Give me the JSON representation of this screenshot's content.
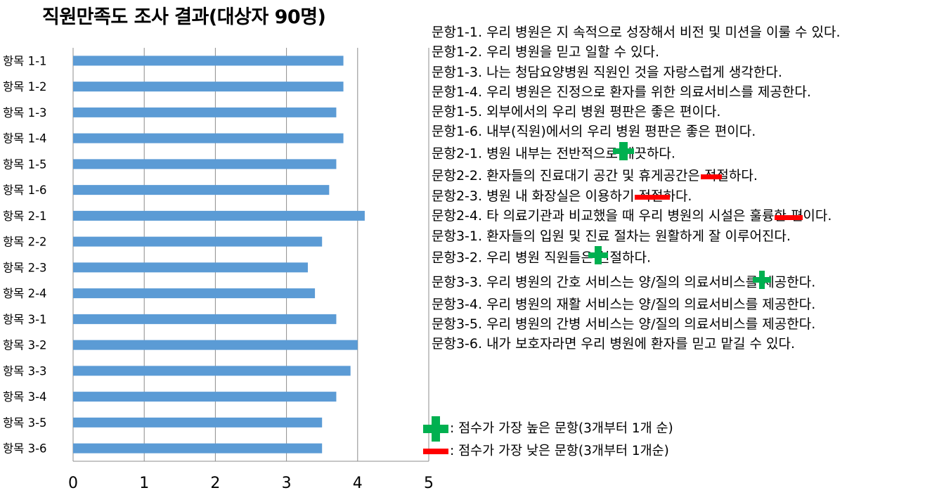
{
  "chart_data": {
    "type": "bar",
    "orientation": "horizontal",
    "title": "직원만족도 조사 결과(대상자 90명)",
    "categories": [
      "항목 1-1",
      "항목 1-2",
      "항목 1-3",
      "항목 1-4",
      "항목 1-5",
      "항목 1-6",
      "항목 2-1",
      "항목 2-2",
      "항목 2-3",
      "항목 2-4",
      "항목 3-1",
      "항목 3-2",
      "항목 3-3",
      "항목 3-4",
      "항목 3-5",
      "항목 3-6"
    ],
    "values": [
      3.8,
      3.8,
      3.7,
      3.8,
      3.7,
      3.6,
      4.1,
      3.5,
      3.3,
      3.4,
      3.7,
      4.0,
      3.9,
      3.7,
      3.5,
      3.5
    ],
    "xlim": [
      0,
      5
    ],
    "xticks": [
      "0",
      "1",
      "2",
      "3",
      "4",
      "5"
    ],
    "grid": "vertical",
    "bar_color": "#5b9bd5"
  },
  "questions": [
    {
      "text": "문항1-1. 우리 병원은 지 속적으로 성장해서 비전 및 미션을 이룰 수 있다.",
      "plus": 0,
      "minus": 0
    },
    {
      "text": "문항1-2. 우리 병원을 믿고 일할 수 있다.",
      "plus": 0,
      "minus": 0
    },
    {
      "text": "문항1-3. 나는 청담요양병원 직원인 것을 자랑스럽게 생각한다.",
      "plus": 0,
      "minus": 0
    },
    {
      "text": "문항1-4. 우리 병원은 진정으로 환자를 위한 의료서비스를 제공한다.",
      "plus": 0,
      "minus": 0
    },
    {
      "text": "문항1-5. 외부에서의 우리 병원 평판은 좋은 편이다.",
      "plus": 0,
      "minus": 0
    },
    {
      "text": "문항1-6. 내부(직원)에서의 우리 병원 평판은 좋은 편이다.",
      "plus": 0,
      "minus": 0
    },
    {
      "text": "문항2-1. 병원 내부는 전반적으로 깨끗하다.",
      "plus": 3,
      "minus": 0
    },
    {
      "text": "문항2-2. 환자들의 진료대기 공간 및 휴게공간은 적절하다.",
      "plus": 0,
      "minus": 1
    },
    {
      "text": "문항2-3. 병원 내 화장실은 이용하기 적절하다.",
      "plus": 0,
      "minus": 3
    },
    {
      "text": "문항2-4. 타 의료기관과 비교했을 때 우리 병원의 시설은 훌륭한 편이다.",
      "plus": 0,
      "minus": 2
    },
    {
      "text": "문항3-1. 환자들의 입원 및 진료 절차는 원활하게 잘 이루어진다.",
      "plus": 0,
      "minus": 0
    },
    {
      "text": "문항3-2. 우리 병원 직원들은 친절하다.",
      "plus": 2,
      "minus": 0
    },
    {
      "text": "문항3-3. 우리 병원의 간호 서비스는 양/질의 의료서비스를 제공한다.",
      "plus": 1,
      "minus": 0
    },
    {
      "text": "문항3-4. 우리 병원의 재활 서비스는 양/질의 의료서비스를 제공한다.",
      "plus": 0,
      "minus": 0
    },
    {
      "text": "문항3-5. 우리 병원의 간병 서비스는 양/질의 의료서비스를 제공한다.",
      "plus": 0,
      "minus": 0
    },
    {
      "text": "문항3-6. 내가 보호자라면 우리 병원에 환자를 믿고 맡길 수 있다.",
      "plus": 0,
      "minus": 0
    }
  ],
  "legend": {
    "plus_label": ": 점수가 가장 높은 문항(3개부터 1개 순)",
    "minus_label": ": 점수가 가장 낮은 문항(3개부터 1개순)"
  },
  "colors": {
    "plus": "#00b050",
    "minus": "#ff0000",
    "bar": "#5b9bd5",
    "grid": "#8c8c8c"
  }
}
